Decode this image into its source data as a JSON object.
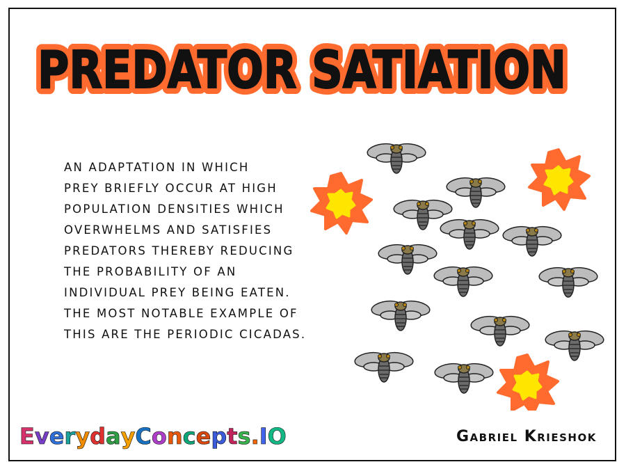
{
  "title": "PREDATOR SATIATION",
  "description_lines": [
    "An adaptation in which",
    "prey briefly occur at high",
    "population densities which",
    "overwhelms and satisfies",
    "predators thereby reducing",
    "the probability of an",
    "individual prey being eaten.",
    "The most notable example of",
    "this are the periodic cicadas."
  ],
  "brand": "EverydayConcepts.IO",
  "author": "Gabriel Krieshok",
  "colors": {
    "title_outline": "#ff6a2e",
    "flower_petals": "#ff6a2e",
    "flower_center": "#ffe600",
    "cicada_wing": "#bcbcbc",
    "cicada_body": "#6b6b6b",
    "cicada_eye": "#b8860b",
    "brand_letters": [
      "#d6336c",
      "#7a3fc7",
      "#2f6fd8",
      "#1ba39c",
      "#f08c00",
      "#e03131",
      "#2f9e44",
      "#f59f00",
      "#1971c2",
      "#ae3ec9",
      "#e8590c",
      "#0ca678",
      "#d9480f",
      "#3b5bdb",
      "#c2255c",
      "#37b24d",
      "#f76707",
      "#4263eb",
      "#12b886"
    ]
  },
  "icons": [
    "cicada-icon",
    "flower-icon"
  ]
}
